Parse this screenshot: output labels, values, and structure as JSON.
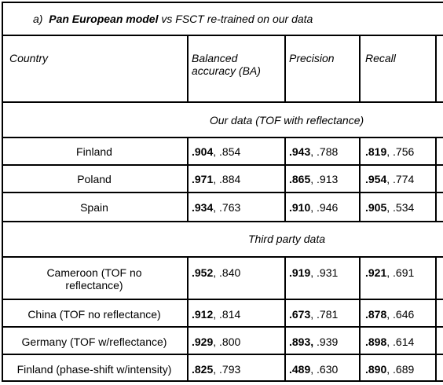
{
  "caption": {
    "prefix": "a)",
    "bold": "Pan European model",
    "rest": " vs FSCT re-trained on our data"
  },
  "headers": {
    "country": "Country",
    "ba_line1": "Balanced",
    "ba_line2": "accuracy (BA)",
    "precision": "Precision",
    "recall": "Recall"
  },
  "sections": [
    {
      "title": "Our data (TOF with reflectance)",
      "rows": [
        {
          "country": [
            "Finland"
          ],
          "ba_bold": ".904",
          "ba_rest": ", .854",
          "prec_bold": ".943",
          "prec_rest": ", .788",
          "rec_bold": ".819",
          "rec_rest": ", .756"
        },
        {
          "country": [
            "Poland"
          ],
          "ba_bold": ".971",
          "ba_rest": ", .884",
          "prec_bold": ".865",
          "prec_rest": ", .913",
          "rec_bold": ".954",
          "rec_rest": ", .774"
        },
        {
          "country": [
            "Spain"
          ],
          "ba_bold": ".934",
          "ba_rest": ", .763",
          "prec_bold": ".910",
          "prec_rest": ", .946",
          "rec_bold": ".905",
          "rec_rest": ", .534"
        }
      ]
    },
    {
      "title": "Third party data",
      "rows": [
        {
          "country": [
            "Cameroon (TOF no",
            "reflectance)"
          ],
          "ba_bold": ".952",
          "ba_rest": ", .840",
          "prec_bold": ".919",
          "prec_rest": ", .931",
          "rec_bold": ".921",
          "rec_rest": ", .691"
        },
        {
          "country": [
            "China (TOF no reflectance)"
          ],
          "ba_bold": ".912",
          "ba_rest": ", .814",
          "prec_bold": ".673",
          "prec_rest": ", .781",
          "rec_bold": ".878",
          "rec_rest": ", .646"
        },
        {
          "country": [
            "Germany (TOF w/reflectance)"
          ],
          "ba_bold": ".929",
          "ba_rest": ", .800",
          "prec_bold": ".893,",
          "prec_rest": " .939",
          "rec_bold": ".898",
          "rec_rest": ", .614"
        },
        {
          "country": [
            "Finland (phase-shift w/intensity)"
          ],
          "ba_bold": ".825",
          "ba_rest": ", .793",
          "prec_bold": ".489",
          "prec_rest": ", .630",
          "rec_bold": ".890",
          "rec_rest": ", .689"
        }
      ]
    }
  ]
}
